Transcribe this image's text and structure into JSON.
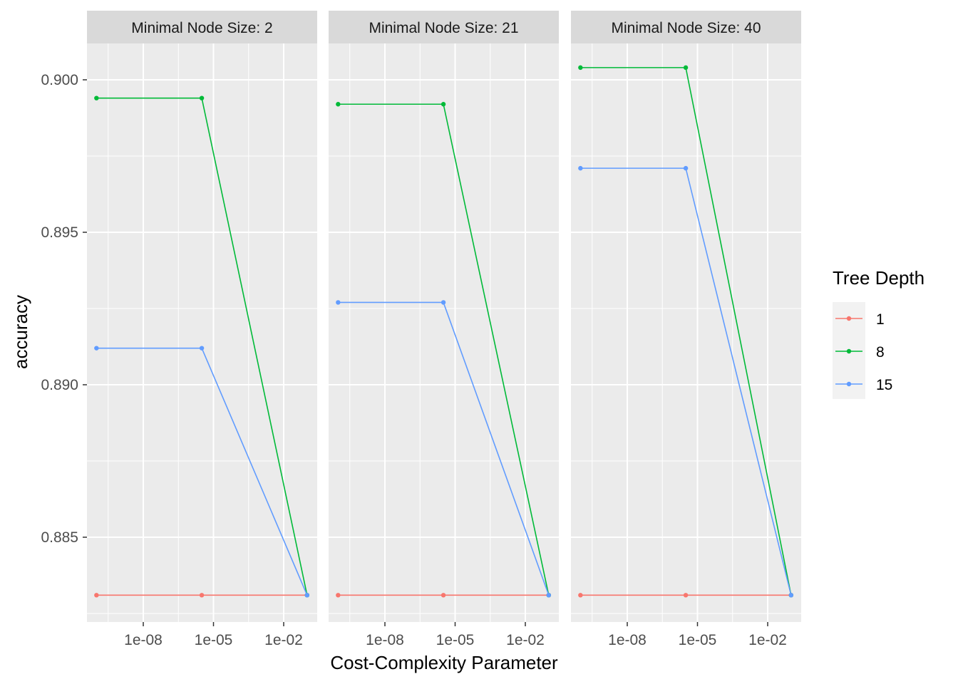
{
  "chart_data": {
    "type": "line",
    "xlabel": "Cost-Complexity Parameter",
    "ylabel": "accuracy",
    "x_scale": "log10",
    "x_ticks": [
      1e-08,
      1e-05,
      0.01
    ],
    "x_tick_labels": [
      "1e-08",
      "1e-05",
      "1e-02"
    ],
    "y_ticks": [
      0.885,
      0.89,
      0.895,
      0.9
    ],
    "y_tick_labels": [
      "0.885",
      "0.890",
      "0.895",
      "0.900"
    ],
    "grid": true,
    "legend": {
      "title": "Tree Depth",
      "position": "right",
      "entries": [
        "1",
        "8",
        "15"
      ],
      "colors": [
        "#F8766D",
        "#00BA38",
        "#619CFF"
      ]
    },
    "x": [
      1e-10,
      3.16e-06,
      0.1
    ],
    "panels": [
      {
        "strip": "Minimal Node Size: 2",
        "series": [
          {
            "name": "1",
            "values": [
              0.8831,
              0.8831,
              0.8831
            ]
          },
          {
            "name": "8",
            "values": [
              0.8994,
              0.8994,
              0.8831
            ]
          },
          {
            "name": "15",
            "values": [
              0.8912,
              0.8912,
              0.8831
            ]
          }
        ]
      },
      {
        "strip": "Minimal Node Size: 21",
        "series": [
          {
            "name": "1",
            "values": [
              0.8831,
              0.8831,
              0.8831
            ]
          },
          {
            "name": "8",
            "values": [
              0.8992,
              0.8992,
              0.8831
            ]
          },
          {
            "name": "15",
            "values": [
              0.8927,
              0.8927,
              0.8831
            ]
          }
        ]
      },
      {
        "strip": "Minimal Node Size: 40",
        "series": [
          {
            "name": "1",
            "values": [
              0.8831,
              0.8831,
              0.8831
            ]
          },
          {
            "name": "8",
            "values": [
              0.9004,
              0.9004,
              0.8831
            ]
          },
          {
            "name": "15",
            "values": [
              0.8971,
              0.8971,
              0.8831
            ]
          }
        ]
      }
    ]
  }
}
